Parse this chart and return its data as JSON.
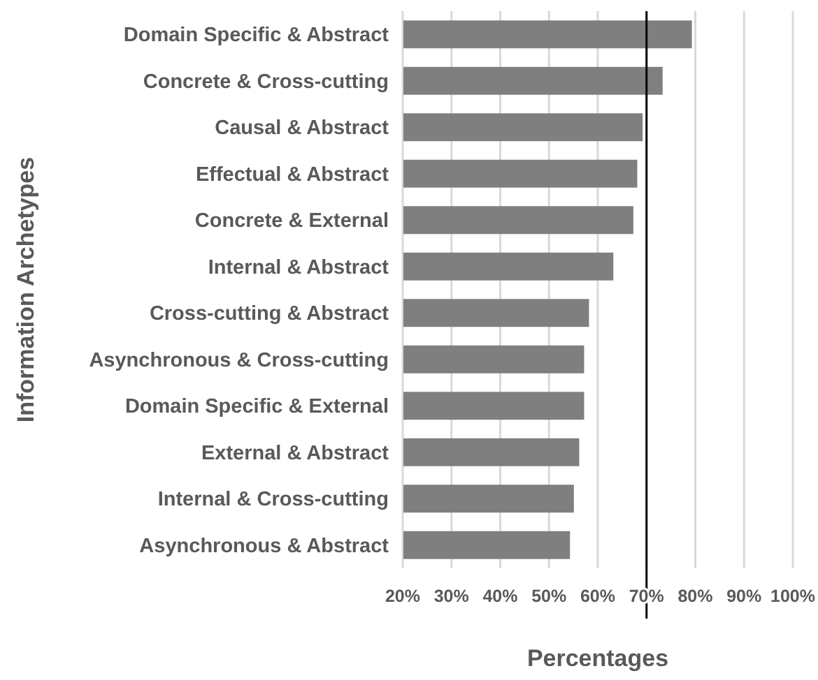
{
  "chart_data": {
    "type": "bar",
    "orientation": "horizontal",
    "xlabel": "Percentages",
    "ylabel": "Information Archetypes",
    "categories": [
      "Domain Specific & Abstract",
      "Concrete & Cross-cutting",
      "Causal & Abstract",
      "Effectual & Abstract",
      "Concrete & External",
      "Internal & Abstract",
      "Cross-cutting & Abstract",
      "Asynchronous & Cross-cutting",
      "Domain Specific & External",
      "External & Abstract",
      "Internal & Cross-cutting",
      "Asynchronous & Abstract"
    ],
    "values": [
      79.3,
      73.3,
      69.2,
      68.1,
      67.3,
      63.2,
      58.2,
      57.2,
      57.2,
      56.2,
      55.1,
      54.3
    ],
    "color": "#7f7f7f",
    "xlim": [
      20,
      100
    ],
    "xticks": [
      {
        "value": 20,
        "label": "20%"
      },
      {
        "value": 30,
        "label": "30%"
      },
      {
        "value": 40,
        "label": "40%"
      },
      {
        "value": 50,
        "label": "50%"
      },
      {
        "value": 60,
        "label": "60%"
      },
      {
        "value": 70,
        "label": "70%"
      },
      {
        "value": 80,
        "label": "80%"
      },
      {
        "value": 90,
        "label": "90%"
      },
      {
        "value": 100,
        "label": "100%"
      }
    ],
    "ref_lines": [
      {
        "axis": "x",
        "value": 70,
        "color": "#000000"
      }
    ],
    "grid": "x"
  }
}
